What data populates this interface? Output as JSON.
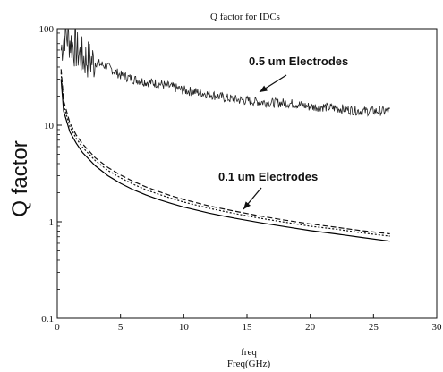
{
  "chart_data": {
    "type": "line",
    "title": "Q factor for IDCs",
    "xlabel_top": "freq",
    "xlabel_bottom": "Freq(GHz)",
    "ylabel": "Q factor",
    "xlim": [
      0,
      30
    ],
    "ylim": [
      0.1,
      100
    ],
    "yscale": "log",
    "grid": false,
    "x_ticks": [
      "0",
      "5",
      "10",
      "15",
      "20",
      "25",
      "30"
    ],
    "y_ticks": [
      "0.1",
      "1",
      "10",
      "100"
    ],
    "annotations": [
      {
        "text": "0.5 um Electrodes"
      },
      {
        "text": "0.1 um Electrodes"
      }
    ],
    "series": [
      {
        "style": "solid-noisy",
        "color": "#222222",
        "x": [
          0.3,
          0.6,
          1,
          1.5,
          2,
          3,
          4,
          5,
          6,
          7,
          8,
          9,
          10,
          11,
          12,
          13,
          14,
          15,
          16,
          17,
          18,
          19,
          20,
          21,
          22,
          23,
          24,
          25,
          26.3
        ],
        "y": [
          60,
          90,
          75,
          60,
          50,
          45,
          40,
          33,
          30,
          28,
          27,
          25,
          23,
          22,
          21,
          19.5,
          18.5,
          18,
          17.5,
          17,
          17,
          16.5,
          15.5,
          15.5,
          15,
          14.5,
          14,
          14,
          14
        ]
      },
      {
        "style": "solid",
        "color": "#000000",
        "x": [
          0.3,
          0.5,
          1,
          1.5,
          2,
          3,
          4,
          5,
          6,
          7,
          8,
          9,
          10,
          12,
          14,
          16,
          18,
          20,
          22,
          24,
          26.3
        ],
        "y": [
          30,
          14,
          8.5,
          6.5,
          5.2,
          3.8,
          3.0,
          2.5,
          2.15,
          1.9,
          1.7,
          1.55,
          1.42,
          1.23,
          1.09,
          0.98,
          0.89,
          0.81,
          0.75,
          0.69,
          0.63
        ]
      },
      {
        "style": "dotted",
        "color": "#111111",
        "x": [
          0.3,
          0.5,
          1,
          1.5,
          2,
          3,
          4,
          5,
          6,
          7,
          8,
          9,
          10,
          12,
          14,
          16,
          18,
          20,
          22,
          24,
          26.3
        ],
        "y": [
          35,
          16,
          9.6,
          7.3,
          5.9,
          4.3,
          3.4,
          2.85,
          2.45,
          2.15,
          1.93,
          1.75,
          1.6,
          1.38,
          1.22,
          1.09,
          0.99,
          0.9,
          0.84,
          0.77,
          0.71
        ]
      },
      {
        "style": "dashed",
        "color": "#111111",
        "x": [
          0.3,
          0.5,
          1,
          1.5,
          2,
          3,
          4,
          5,
          6,
          7,
          8,
          9,
          10,
          12,
          14,
          16,
          18,
          20,
          22,
          24,
          26.3
        ],
        "y": [
          38,
          18,
          10.5,
          7.9,
          6.4,
          4.6,
          3.65,
          3.05,
          2.62,
          2.3,
          2.06,
          1.86,
          1.7,
          1.46,
          1.29,
          1.15,
          1.04,
          0.95,
          0.88,
          0.81,
          0.75
        ]
      }
    ]
  }
}
